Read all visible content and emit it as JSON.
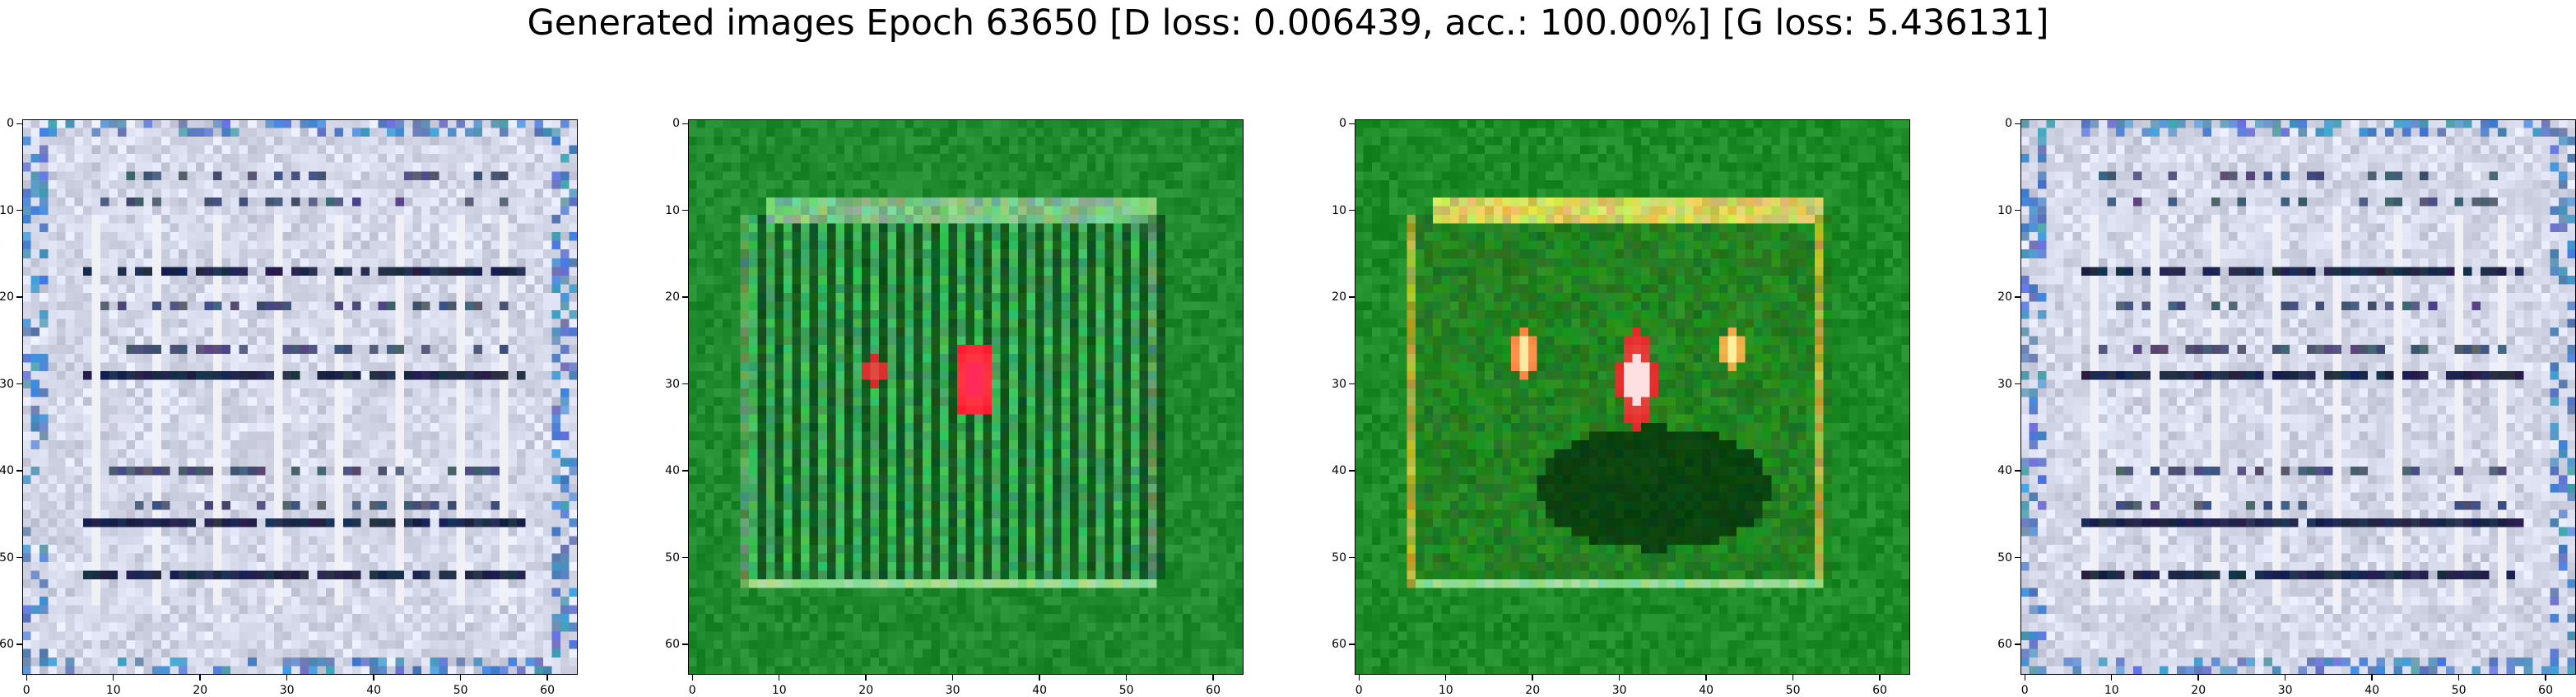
{
  "figure": {
    "title": "Generated images Epoch 63650 [D loss: 0.006439, acc.: 100.00%] [G loss: 5.436131]"
  },
  "panels": [
    {
      "name": "generated-image-1",
      "theme": "document",
      "colors": {
        "base": "#cfd2e2",
        "dark": "#101a3c",
        "light": "#f1f1f5",
        "accent": "#5a8ec8"
      }
    },
    {
      "name": "generated-image-2",
      "theme": "field",
      "colors": {
        "base": "#1f8a2e",
        "dark": "#064b12",
        "light": "#9de0a4",
        "accent": "#ff1a2e"
      }
    },
    {
      "name": "generated-image-3",
      "theme": "field-spots",
      "colors": {
        "base": "#1e8c26",
        "dark": "#033b08",
        "light": "#f4f27a",
        "accent": "#ff7a3a"
      }
    },
    {
      "name": "generated-image-4",
      "theme": "document",
      "colors": {
        "base": "#cfd2e2",
        "dark": "#101a3c",
        "light": "#f1f1f5",
        "accent": "#5a8ec8"
      }
    }
  ],
  "axes": {
    "image_size": 64,
    "x_ticks": [
      "0",
      "10",
      "20",
      "30",
      "40",
      "50",
      "60"
    ],
    "y_ticks": [
      "0",
      "10",
      "20",
      "30",
      "40",
      "50",
      "60"
    ]
  }
}
